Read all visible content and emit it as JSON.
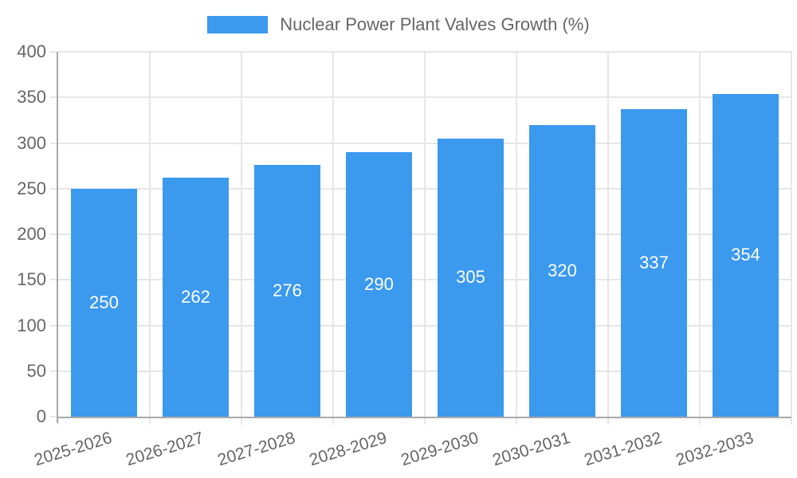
{
  "legend": {
    "label": "Nuclear Power Plant Valves Growth (%)"
  },
  "chart_data": {
    "type": "bar",
    "title": "Nuclear Power Plant Valves Growth (%)",
    "categories": [
      "2025-2026",
      "2026-2027",
      "2027-2028",
      "2028-2029",
      "2029-2030",
      "2030-2031",
      "2031-2032",
      "2032-2033"
    ],
    "values": [
      250,
      262,
      276,
      290,
      305,
      320,
      337,
      354
    ],
    "series_label": "Nuclear Power Plant Valves Growth (%)",
    "xlabel": "",
    "ylabel": "",
    "ylim": [
      0,
      400
    ],
    "yticks": [
      0,
      50,
      100,
      150,
      200,
      250,
      300,
      350,
      400
    ],
    "grid": true,
    "legend_position": "top",
    "bar_labels_shown": true,
    "colors": {
      "bar": "#3b99ee",
      "grid": "#e6e6e6",
      "axis": "#a9a9a9",
      "tick_text": "#666666",
      "bar_label_text": "#ffffff",
      "background": "#ffffff"
    }
  }
}
